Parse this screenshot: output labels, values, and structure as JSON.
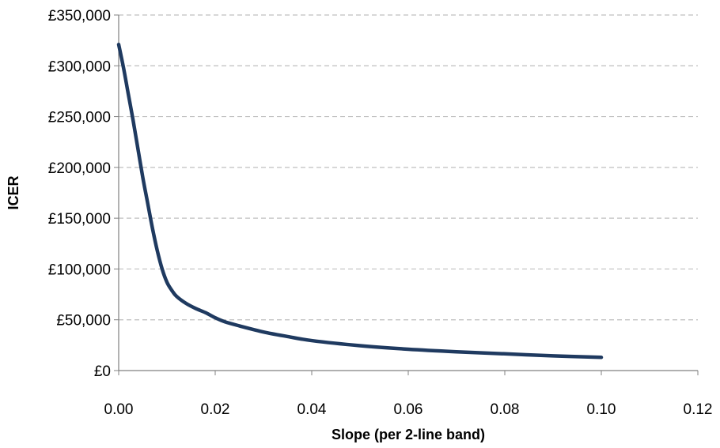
{
  "chart_data": {
    "type": "line",
    "title": "",
    "xlabel": "Slope (per 2-line band)",
    "ylabel": "ICER",
    "xlim": [
      0,
      0.12
    ],
    "ylim": [
      0,
      350000
    ],
    "x_ticks": [
      "0.00",
      "0.02",
      "0.04",
      "0.06",
      "0.08",
      "0.10",
      "0.12"
    ],
    "y_ticks": [
      "£0",
      "£50,000",
      "£100,000",
      "£150,000",
      "£200,000",
      "£250,000",
      "£300,000",
      "£350,000"
    ],
    "grid": "horizontal dashed",
    "legend": "none",
    "colors": {
      "line": "#1f3a60",
      "grid": "#bfbfbf",
      "axis": "#808080"
    },
    "series": [
      {
        "x": [
          0,
          0.001,
          0.002,
          0.003,
          0.004,
          0.005,
          0.006,
          0.007,
          0.008,
          0.009,
          0.01,
          0.011,
          0.012,
          0.014,
          0.016,
          0.018,
          0.02,
          0.022,
          0.025,
          0.03,
          0.035,
          0.04,
          0.05,
          0.06,
          0.07,
          0.08,
          0.09,
          0.1
        ],
        "y": [
          321000,
          298000,
          272000,
          246000,
          218000,
          190000,
          165000,
          140000,
          118000,
          100000,
          87000,
          79000,
          73000,
          66000,
          61000,
          57000,
          52000,
          48000,
          44000,
          38000,
          33500,
          29500,
          24500,
          21000,
          18500,
          16500,
          14500,
          13000
        ]
      }
    ]
  }
}
